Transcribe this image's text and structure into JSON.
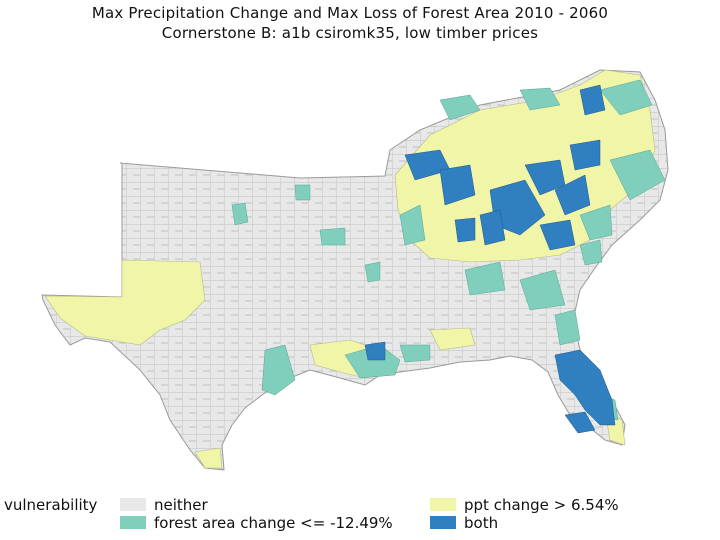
{
  "title": "Max Precipitation Change and Max Loss of Forest Area 2010 - 2060",
  "subtitle": "Cornerstone B:  a1b csiromk35, low timber prices",
  "legend": {
    "title": "vulnerability",
    "items": [
      {
        "key": "neither",
        "label": "neither",
        "color": "#e8e8e8"
      },
      {
        "key": "ppt",
        "label": "ppt change > 6.54%",
        "color": "#f0f5a8"
      },
      {
        "key": "forest",
        "label": "forest area change <= -12.49%",
        "color": "#7fcfbc"
      },
      {
        "key": "both",
        "label": "both",
        "color": "#2f7fc1"
      }
    ]
  },
  "colors": {
    "border": "#9a9a9a",
    "background": "#ffffff"
  }
}
